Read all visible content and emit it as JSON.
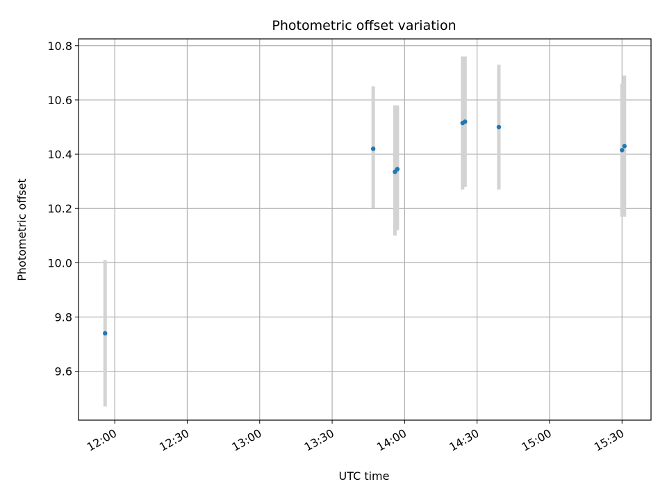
{
  "chart_data": {
    "type": "scatter",
    "title": "Photometric offset variation",
    "xlabel": "UTC time",
    "ylabel": "Photometric offset",
    "xlim": [
      "11:45",
      "15:42"
    ],
    "ylim": [
      9.42,
      10.825
    ],
    "grid": true,
    "x_ticks": [
      "12:00",
      "12:30",
      "13:00",
      "13:30",
      "14:00",
      "14:30",
      "15:00",
      "15:30"
    ],
    "y_ticks": [
      "9.6",
      "9.8",
      "10.0",
      "10.2",
      "10.4",
      "10.6",
      "10.8"
    ],
    "marker_color": "#1f77b4",
    "errorbar_color": "#d3d3d3",
    "series": [
      {
        "points": [
          {
            "x": "11:56",
            "y": 9.74,
            "ylow": 9.47,
            "yhigh": 10.01
          },
          {
            "x": "13:47",
            "y": 10.42,
            "ylow": 10.2,
            "yhigh": 10.65
          },
          {
            "x": "13:56",
            "y": 10.335,
            "ylow": 10.1,
            "yhigh": 10.58
          },
          {
            "x": "13:57",
            "y": 10.345,
            "ylow": 10.12,
            "yhigh": 10.58
          },
          {
            "x": "14:24",
            "y": 10.515,
            "ylow": 10.27,
            "yhigh": 10.76
          },
          {
            "x": "14:25",
            "y": 10.52,
            "ylow": 10.28,
            "yhigh": 10.76
          },
          {
            "x": "14:39",
            "y": 10.5,
            "ylow": 10.27,
            "yhigh": 10.73
          },
          {
            "x": "15:30",
            "y": 10.415,
            "ylow": 10.17,
            "yhigh": 10.66
          },
          {
            "x": "15:31",
            "y": 10.43,
            "ylow": 10.17,
            "yhigh": 10.69
          }
        ]
      }
    ]
  }
}
